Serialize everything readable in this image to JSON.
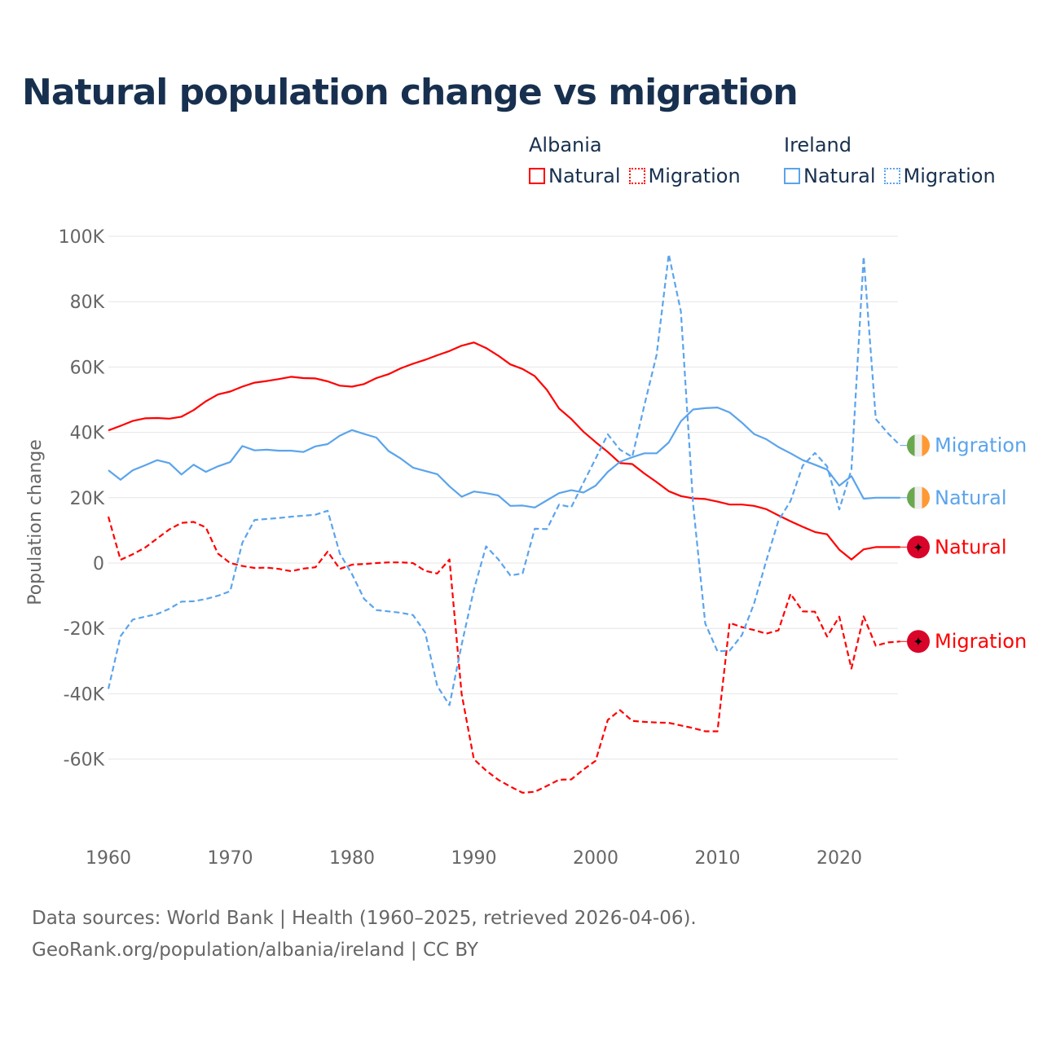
{
  "title": "Natural population change vs migration",
  "legend": {
    "groups": [
      {
        "name": "Albania",
        "items": [
          "Natural",
          "Migration"
        ],
        "color": "#ff0000"
      },
      {
        "name": "Ireland",
        "items": [
          "Natural",
          "Migration"
        ],
        "color": "#5ba4ec"
      }
    ]
  },
  "source": {
    "line1": "Data sources: World Bank | Health (1960–2025, retrieved 2026-04-06).",
    "line2": "GeoRank.org/population/albania/ireland | CC BY"
  },
  "chart_data": {
    "type": "line",
    "title": "Natural population change vs migration",
    "xlabel": "",
    "ylabel": "Population change",
    "xlim": [
      1960,
      2025
    ],
    "ylim": [
      -80,
      100
    ],
    "grid": true,
    "x_ticks": [
      1960,
      1970,
      1980,
      1990,
      2000,
      2010,
      2020
    ],
    "x_tick_labels": [
      "1960",
      "1970",
      "1980",
      "1990",
      "2000",
      "2010",
      "2020"
    ],
    "y_ticks": [
      100,
      80,
      60,
      40,
      20,
      0,
      -20,
      -40,
      -60
    ],
    "y_tick_labels": [
      "100K",
      "80K",
      "60K",
      "40K",
      "20K",
      "0",
      "-20K",
      "-40K",
      "-60K"
    ],
    "units": "thousands",
    "x_start": 1960,
    "series": [
      {
        "name": "Albania Natural",
        "end_label": "Natural",
        "color": "#ff0000",
        "dash": false,
        "flag": "albania",
        "values": [
          40.6,
          42,
          43.5,
          44.3,
          44.4,
          44.2,
          44.8,
          46.8,
          49.5,
          51.6,
          52.5,
          54,
          55.2,
          55.7,
          56.3,
          57,
          56.6,
          56.5,
          55.6,
          54.3,
          54,
          54.8,
          56.6,
          57.8,
          59.6,
          61,
          62.2,
          63.6,
          64.9,
          66.5,
          67.5,
          65.8,
          63.5,
          60.8,
          59.4,
          57.2,
          53,
          47.3,
          44.1,
          40.2,
          37,
          34,
          30.6,
          30.3,
          27.4,
          24.8,
          22,
          20.5,
          19.8,
          19.6,
          18.8,
          17.9,
          17.9,
          17.5,
          16.5,
          14.6,
          12.8,
          11.1,
          9.5,
          8.8,
          4.1,
          1.1,
          4.2,
          4.9,
          4.9,
          4.9
        ]
      },
      {
        "name": "Albania Migration",
        "end_label": "Migration",
        "color": "#ff0000",
        "dash": true,
        "flag": "albania",
        "values": [
          14.2,
          1,
          2.7,
          4.7,
          7.5,
          10.3,
          12.3,
          12.6,
          10.9,
          2.9,
          0,
          -0.9,
          -1.5,
          -1.4,
          -1.8,
          -2.5,
          -1.7,
          -1.3,
          3.5,
          -1.8,
          -0.5,
          -0.3,
          0,
          0.2,
          0.2,
          0,
          -2.4,
          -3.2,
          1.1,
          -40,
          -60,
          -63.5,
          -66.3,
          -68.4,
          -70.3,
          -70,
          -68.2,
          -66.3,
          -66.2,
          -63.2,
          -60.5,
          -48,
          -45,
          -48.3,
          -48.6,
          -48.8,
          -48.9,
          -49.7,
          -50.5,
          -51.5,
          -51.5,
          -18.3,
          -19.6,
          -20.5,
          -21.6,
          -20.6,
          -9.4,
          -14.8,
          -14.9,
          -22.5,
          -16.4,
          -32.3,
          -16.3,
          -25.3,
          -24.3,
          -24.0
        ]
      },
      {
        "name": "Ireland Natural",
        "end_label": "Natural",
        "color": "#5ba4ec",
        "dash": false,
        "flag": "ireland",
        "values": [
          28.4,
          25.5,
          28.4,
          29.9,
          31.5,
          30.6,
          27.1,
          30.1,
          27.9,
          29.6,
          30.9,
          35.8,
          34.5,
          34.7,
          34.4,
          34.4,
          34,
          35.7,
          36.4,
          39,
          40.7,
          39.5,
          38.4,
          34.3,
          32,
          29.2,
          28.2,
          27.2,
          23.5,
          20.3,
          21.9,
          21.4,
          20.7,
          17.5,
          17.6,
          17,
          19.2,
          21.4,
          22.3,
          21.6,
          23.7,
          27.9,
          31,
          32.4,
          33.6,
          33.6,
          36.9,
          43.4,
          47,
          47.4,
          47.6,
          46.1,
          43,
          39.5,
          37.9,
          35.5,
          33.6,
          31.5,
          30.1,
          28.6,
          23.7,
          26.6,
          19.7,
          20,
          20,
          20
        ]
      },
      {
        "name": "Ireland Migration",
        "end_label": "Migration",
        "color": "#5ba4ec",
        "dash": true,
        "flag": "ireland",
        "values": [
          -38.5,
          -22.4,
          -17.3,
          -16.4,
          -15.6,
          -14,
          -11.8,
          -11.7,
          -11,
          -10,
          -8.6,
          6.2,
          13.2,
          13.5,
          13.8,
          14.2,
          14.5,
          14.8,
          16,
          2.9,
          -3.4,
          -11,
          -14.4,
          -14.8,
          -15.2,
          -15.9,
          -21.2,
          -37.6,
          -43.5,
          -25,
          -8.2,
          5.1,
          1.2,
          -3.8,
          -3.2,
          10.5,
          10.4,
          17.9,
          17.1,
          24.6,
          32,
          39.4,
          34.7,
          32.5,
          48.3,
          63.7,
          94.5,
          77,
          18,
          -18.5,
          -27,
          -26.8,
          -22.1,
          -12.5,
          0.6,
          13,
          19,
          29.8,
          33.7,
          29.6,
          16.4,
          28.6,
          93.8,
          44.1,
          39.7,
          36
        ]
      }
    ]
  }
}
